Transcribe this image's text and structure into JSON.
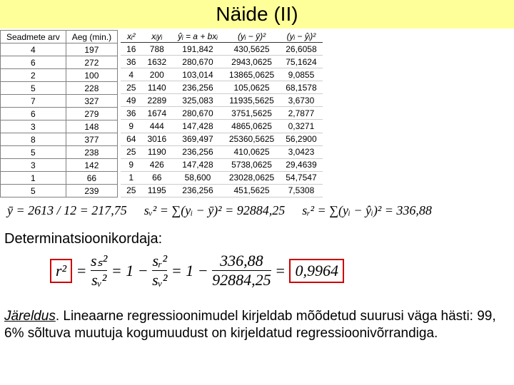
{
  "title": "Näide (II)",
  "table": {
    "left_headers": [
      "Seadmete arv",
      "Aeg (min.)"
    ],
    "right_headers": [
      "xᵢ²",
      "xᵢyᵢ",
      "ŷᵢ = a + bxᵢ",
      "(yᵢ − ȳ)²",
      "(yᵢ − ŷᵢ)²"
    ],
    "rows": [
      [
        "4",
        "197",
        "16",
        "788",
        "191,842",
        "430,5625",
        "26,6058"
      ],
      [
        "6",
        "272",
        "36",
        "1632",
        "280,670",
        "2943,0625",
        "75,1624"
      ],
      [
        "2",
        "100",
        "4",
        "200",
        "103,014",
        "13865,0625",
        "9,0855"
      ],
      [
        "5",
        "228",
        "25",
        "1140",
        "236,256",
        "105,0625",
        "68,1578"
      ],
      [
        "7",
        "327",
        "49",
        "2289",
        "325,083",
        "11935,5625",
        "3,6730"
      ],
      [
        "6",
        "279",
        "36",
        "1674",
        "280,670",
        "3751,5625",
        "2,7877"
      ],
      [
        "3",
        "148",
        "9",
        "444",
        "147,428",
        "4865,0625",
        "0,3271"
      ],
      [
        "8",
        "377",
        "64",
        "3016",
        "369,497",
        "25360,5625",
        "56,2900"
      ],
      [
        "5",
        "238",
        "25",
        "1190",
        "236,256",
        "410,0625",
        "3,0423"
      ],
      [
        "3",
        "142",
        "9",
        "426",
        "147,428",
        "5738,0625",
        "29,4639"
      ],
      [
        "1",
        "66",
        "1",
        "66",
        "58,600",
        "23028,0625",
        "54,7547"
      ],
      [
        "5",
        "239",
        "25",
        "1195",
        "236,256",
        "451,5625",
        "7,5308"
      ]
    ]
  },
  "eq1": {
    "ybar": "ȳ = 2613 / 12 = 217,75",
    "sv2": "sᵥ² = ∑(yᵢ − ȳ)² = 92884,25",
    "sr2": "sᵣ² = ∑(yᵢ − ŷᵢ)² = 336,88"
  },
  "det_label": "Determinatsioonikordaja:",
  "det_eq": {
    "lhs": "r²",
    "mid_top1": "sₛ²",
    "mid_bot1": "sᵥ²",
    "mid_top2": "sᵣ²",
    "mid_bot2": "sᵥ²",
    "num": "336,88",
    "den": "92884,25",
    "result": "0,9964"
  },
  "conclusion": {
    "lead": "Järeldus",
    "text": ". Lineaarne regressioonimudel kirjeldab mõõdetud suurusi väga hästi: 99, 6% sõltuva muutuja kogumuudust on kirjeldatud regressioonivõrrandiga."
  },
  "colors": {
    "title_bg": "#ffff99",
    "red": "#cc0000",
    "border": "#808080"
  }
}
